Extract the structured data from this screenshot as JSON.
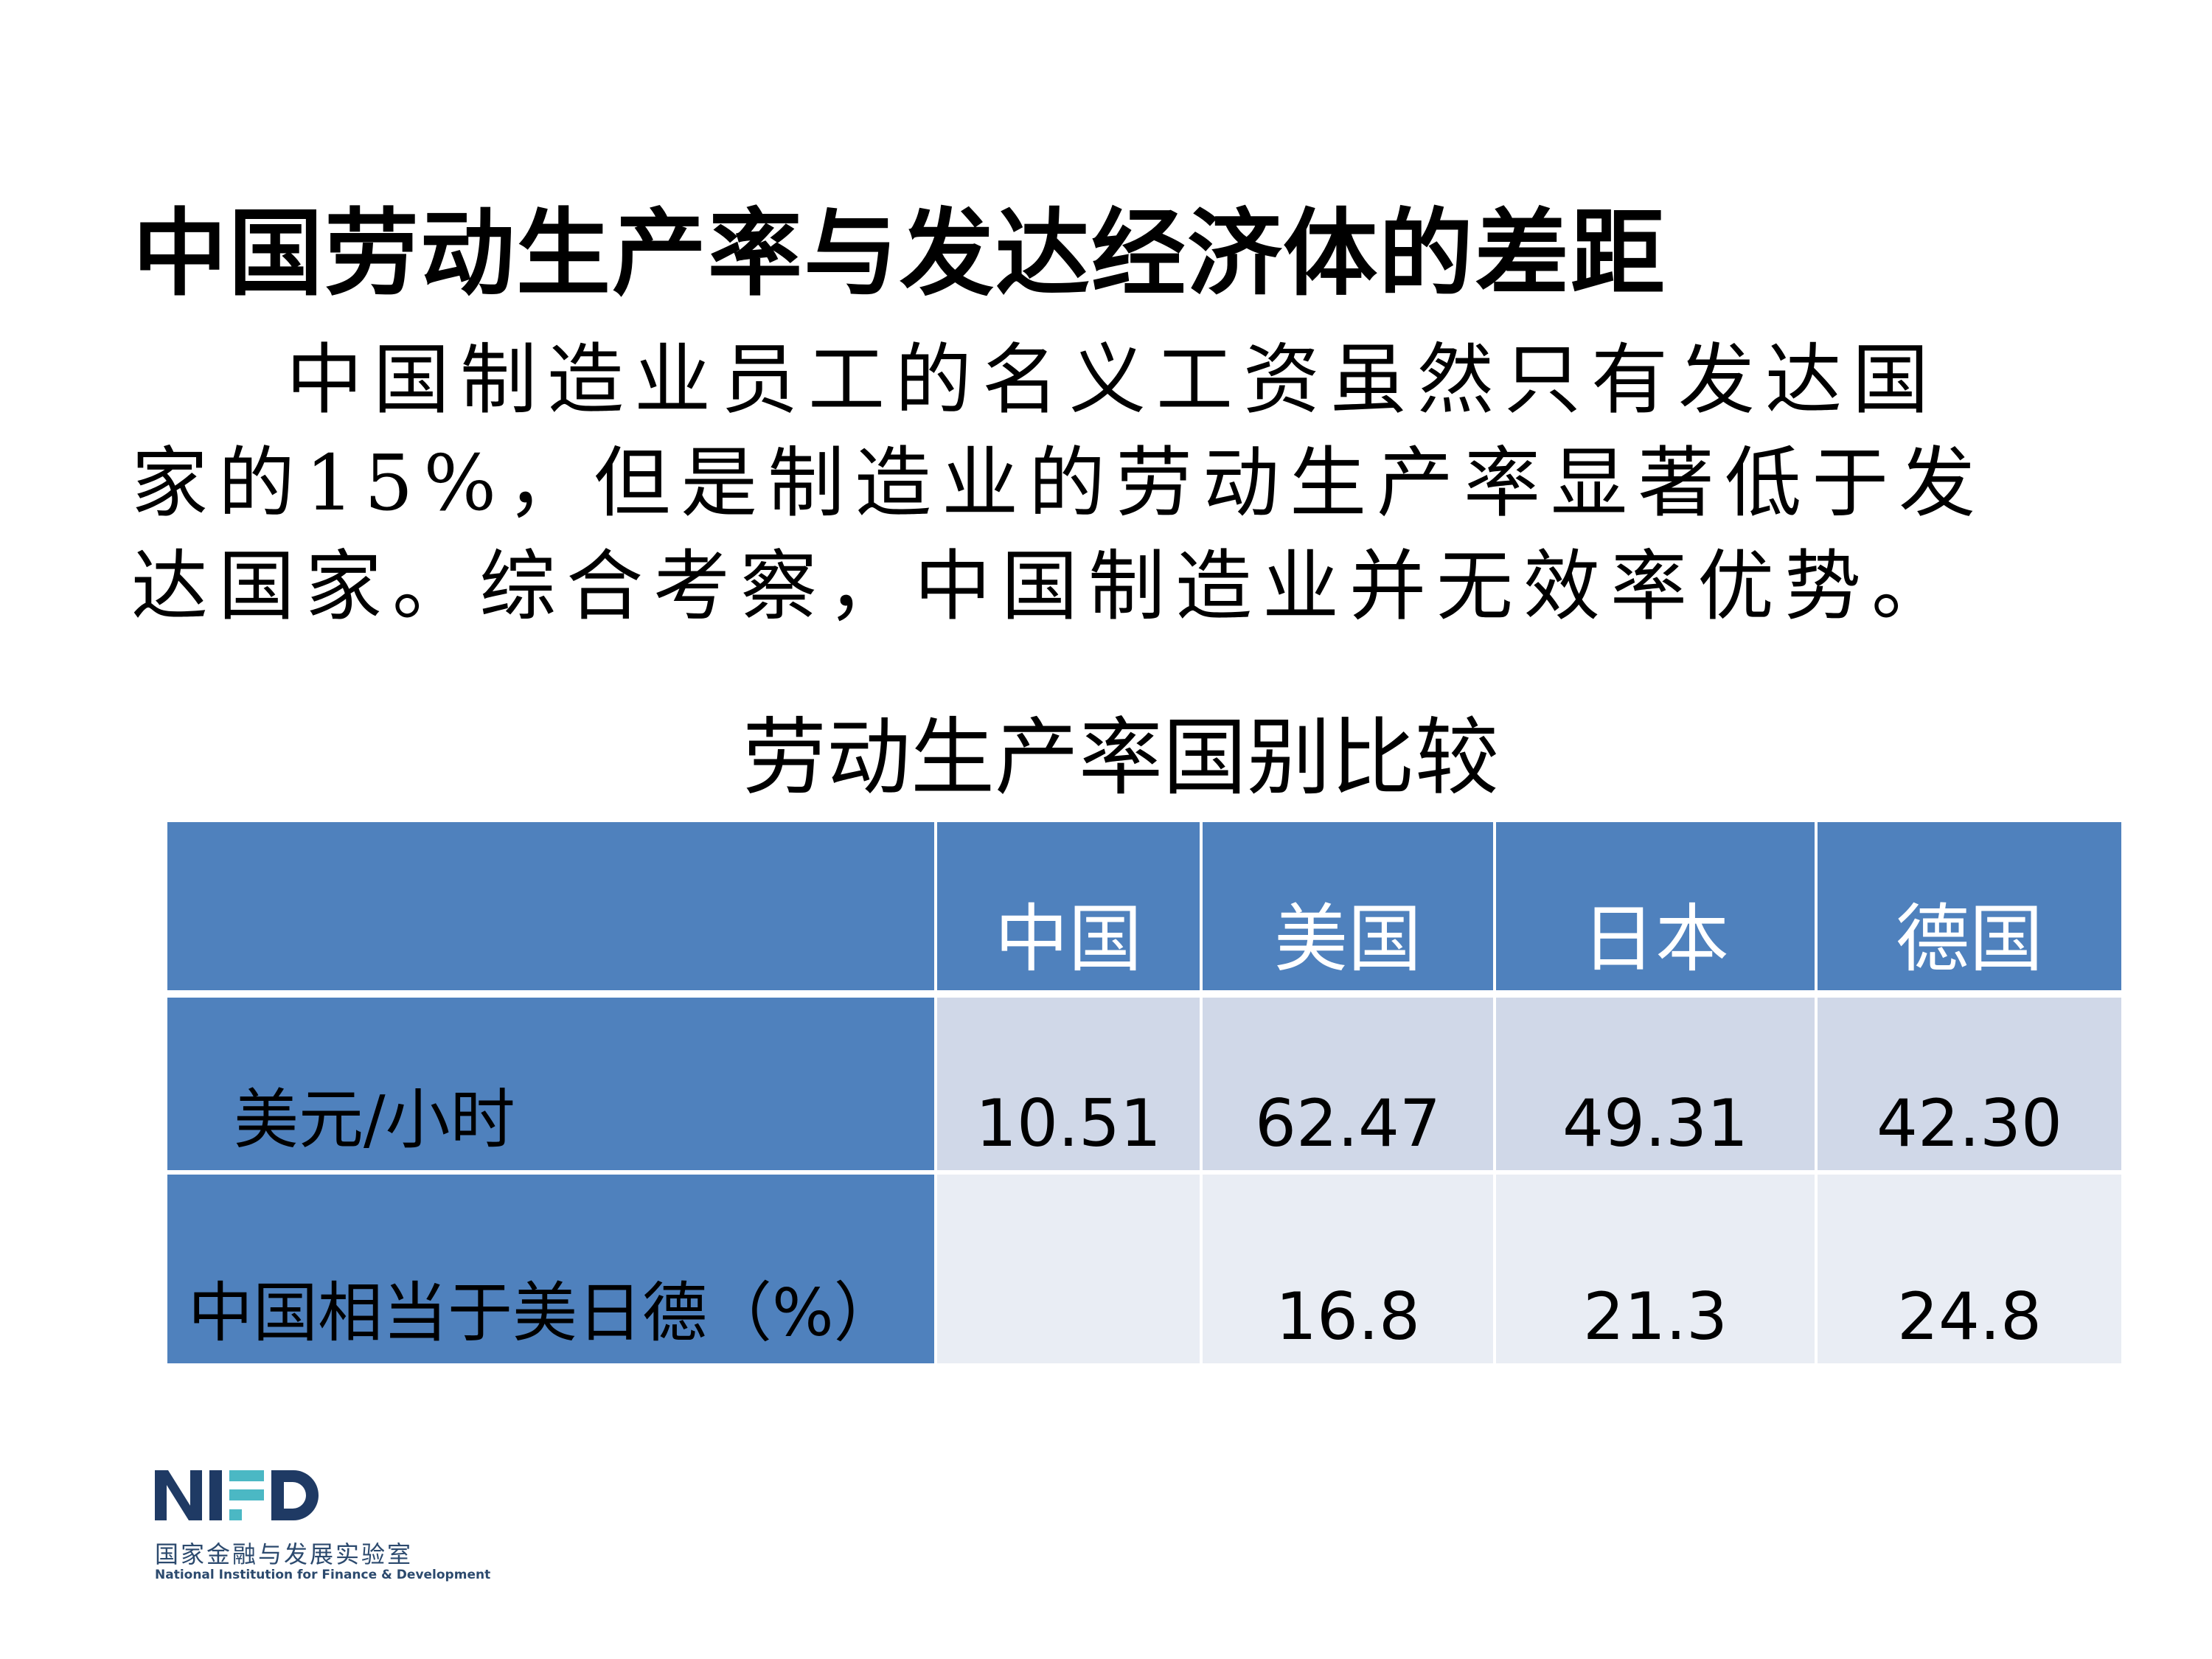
{
  "title": "中国劳动生产率与发达经济体的差距",
  "paragraph": "中国制造业员工的名义工资虽然只有发达国家的15%，但是制造业的劳动生产率显著低于发达国家。综合考察，中国制造业并无效率优势。",
  "table": {
    "caption": "劳动生产率国别比较",
    "headers": [
      "",
      "中国",
      "美国",
      "日本",
      "德国"
    ],
    "rows": [
      {
        "label": "美元/小时",
        "values": [
          "10.51",
          "62.47",
          "49.31",
          "42.30"
        ]
      },
      {
        "label": "中国相当于美日德（%）",
        "values": [
          "",
          "16.8",
          "21.3",
          "24.8"
        ]
      }
    ]
  },
  "logo": {
    "mark": "NIFD",
    "name_cn": "国家金融与发展实验室",
    "name_en": "National Institution for Finance & Development",
    "colors": {
      "navy": "#1f3a64",
      "teal": "#4bb8c4"
    }
  },
  "colors": {
    "header_bg": "#4f81bd",
    "row1_bg": "#d0d8e8",
    "row2_bg": "#e9edf4"
  }
}
